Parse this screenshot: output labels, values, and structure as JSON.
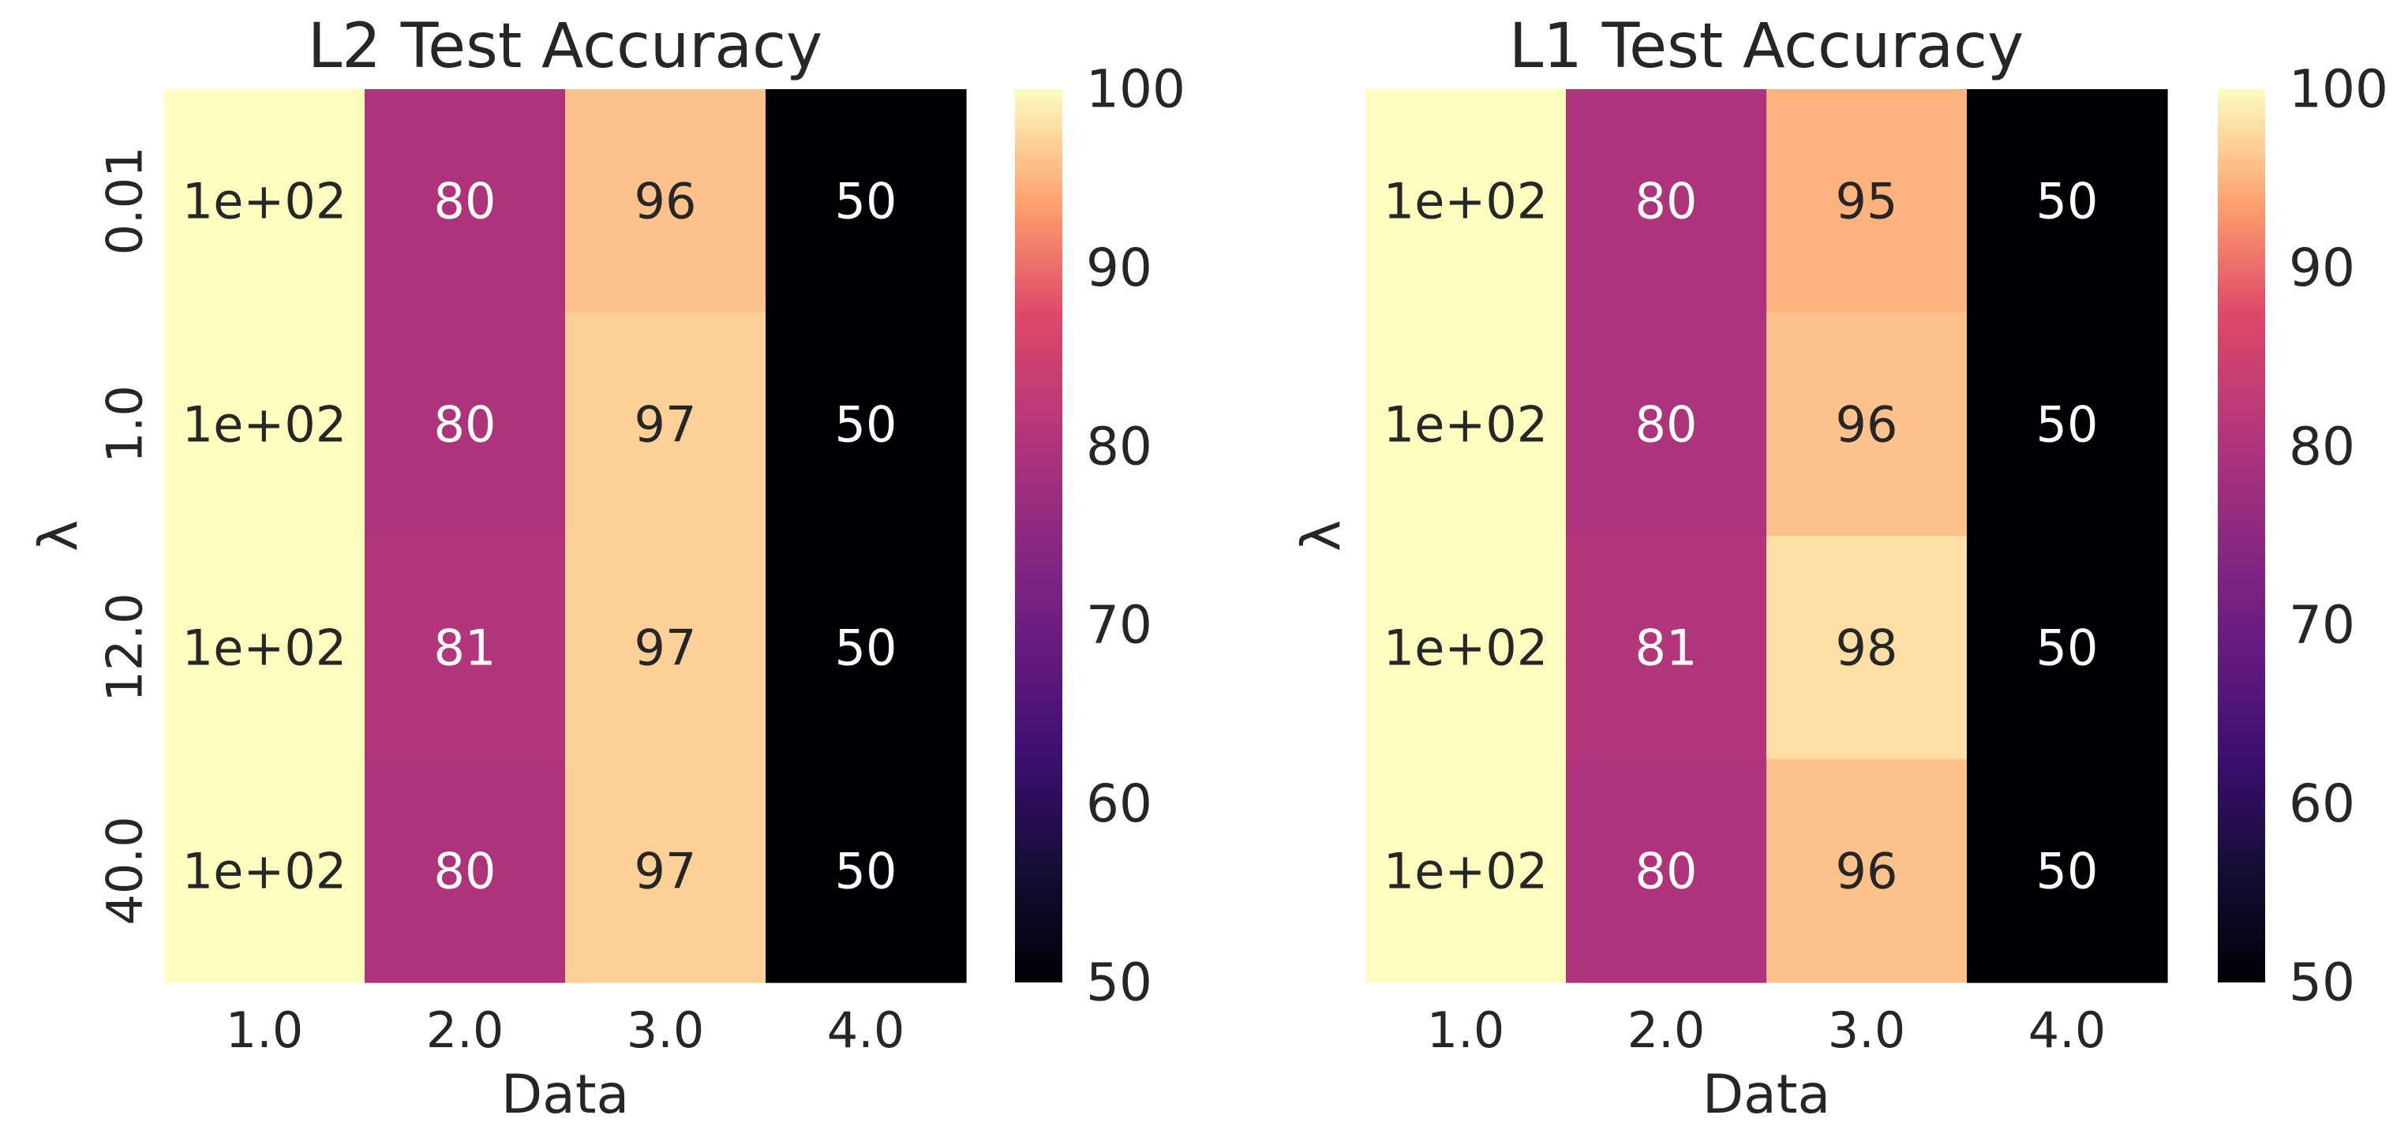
{
  "chart_data": [
    {
      "type": "heatmap",
      "title": "L2 Test Accuracy",
      "xlabel": "Data",
      "ylabel": "λ",
      "x_categories": [
        "1.0",
        "2.0",
        "3.0",
        "4.0"
      ],
      "y_categories": [
        "0.01",
        "1.0",
        "12.0",
        "40.0"
      ],
      "values": [
        [
          100,
          80,
          96,
          50
        ],
        [
          100,
          80,
          97,
          50
        ],
        [
          100,
          81,
          97,
          50
        ],
        [
          100,
          80,
          97,
          50
        ]
      ],
      "annotations": [
        [
          "1e+02",
          "80",
          "96",
          "50"
        ],
        [
          "1e+02",
          "80",
          "97",
          "50"
        ],
        [
          "1e+02",
          "81",
          "97",
          "50"
        ],
        [
          "1e+02",
          "80",
          "97",
          "50"
        ]
      ],
      "colormap": "magma",
      "colorbar": {
        "range": [
          50,
          100
        ],
        "ticks": [
          "50",
          "60",
          "70",
          "80",
          "90",
          "100"
        ]
      }
    },
    {
      "type": "heatmap",
      "title": "L1 Test Accuracy",
      "xlabel": "Data",
      "ylabel": "λ",
      "x_categories": [
        "1.0",
        "2.0",
        "3.0",
        "4.0"
      ],
      "y_categories": [
        "0.01",
        "1.0",
        "12.0",
        "40.0"
      ],
      "values": [
        [
          100,
          80,
          95,
          50
        ],
        [
          100,
          80,
          96,
          50
        ],
        [
          100,
          81,
          98,
          50
        ],
        [
          100,
          80,
          96,
          50
        ]
      ],
      "annotations": [
        [
          "1e+02",
          "80",
          "95",
          "50"
        ],
        [
          "1e+02",
          "80",
          "96",
          "50"
        ],
        [
          "1e+02",
          "81",
          "98",
          "50"
        ],
        [
          "1e+02",
          "80",
          "96",
          "50"
        ]
      ],
      "colormap": "magma",
      "colorbar": {
        "range": [
          50,
          100
        ],
        "ticks": [
          "50",
          "60",
          "70",
          "80",
          "90",
          "100"
        ]
      }
    }
  ]
}
